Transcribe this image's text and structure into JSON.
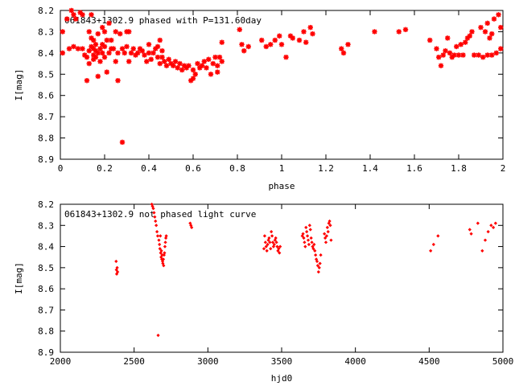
{
  "chart_data": [
    {
      "type": "scatter",
      "title": "061843+1302.9 phased with P=131.60day",
      "xlabel": "phase",
      "ylabel": "I[mag]",
      "xlim": [
        0,
        2
      ],
      "ylim": [
        8.2,
        8.9
      ],
      "y_inverted": true,
      "xticks": [
        "0",
        "0.2",
        "0.4",
        "0.6",
        "0.8",
        "1",
        "1.2",
        "1.4",
        "1.6",
        "1.8",
        "2"
      ],
      "yticks": [
        "8.2",
        "8.3",
        "8.4",
        "8.5",
        "8.6",
        "8.7",
        "8.8",
        "8.9"
      ],
      "marker": "star",
      "color": "#ff0000",
      "points": [
        [
          0.01,
          8.3
        ],
        [
          0.01,
          8.4
        ],
        [
          0.03,
          8.24
        ],
        [
          0.04,
          8.38
        ],
        [
          0.05,
          8.2
        ],
        [
          0.06,
          8.22
        ],
        [
          0.06,
          8.37
        ],
        [
          0.07,
          8.24
        ],
        [
          0.08,
          8.38
        ],
        [
          0.09,
          8.21
        ],
        [
          0.1,
          8.22
        ],
        [
          0.1,
          8.38
        ],
        [
          0.11,
          8.41
        ],
        [
          0.12,
          8.42
        ],
        [
          0.12,
          8.53
        ],
        [
          0.13,
          8.39
        ],
        [
          0.13,
          8.3
        ],
        [
          0.13,
          8.45
        ],
        [
          0.14,
          8.22
        ],
        [
          0.14,
          8.33
        ],
        [
          0.14,
          8.37
        ],
        [
          0.15,
          8.34
        ],
        [
          0.15,
          8.38
        ],
        [
          0.15,
          8.41
        ],
        [
          0.15,
          8.43
        ],
        [
          0.16,
          8.36
        ],
        [
          0.16,
          8.39
        ],
        [
          0.16,
          8.42
        ],
        [
          0.17,
          8.4
        ],
        [
          0.17,
          8.51
        ],
        [
          0.17,
          8.31
        ],
        [
          0.18,
          8.38
        ],
        [
          0.18,
          8.44
        ],
        [
          0.19,
          8.36
        ],
        [
          0.19,
          8.4
        ],
        [
          0.19,
          8.28
        ],
        [
          0.2,
          8.42
        ],
        [
          0.2,
          8.3
        ],
        [
          0.2,
          8.37
        ],
        [
          0.21,
          8.34
        ],
        [
          0.21,
          8.49
        ],
        [
          0.22,
          8.26
        ],
        [
          0.22,
          8.4
        ],
        [
          0.23,
          8.34
        ],
        [
          0.23,
          8.38
        ],
        [
          0.24,
          8.38
        ],
        [
          0.25,
          8.3
        ],
        [
          0.25,
          8.44
        ],
        [
          0.26,
          8.53
        ],
        [
          0.26,
          8.4
        ],
        [
          0.27,
          8.31
        ],
        [
          0.28,
          8.38
        ],
        [
          0.28,
          8.82
        ],
        [
          0.29,
          8.4
        ],
        [
          0.3,
          8.3
        ],
        [
          0.3,
          8.37
        ],
        [
          0.31,
          8.44
        ],
        [
          0.31,
          8.3
        ],
        [
          0.32,
          8.4
        ],
        [
          0.33,
          8.38
        ],
        [
          0.34,
          8.41
        ],
        [
          0.35,
          8.4
        ],
        [
          0.36,
          8.38
        ],
        [
          0.37,
          8.39
        ],
        [
          0.38,
          8.41
        ],
        [
          0.39,
          8.44
        ],
        [
          0.4,
          8.4
        ],
        [
          0.4,
          8.36
        ],
        [
          0.41,
          8.43
        ],
        [
          0.42,
          8.4
        ],
        [
          0.43,
          8.38
        ],
        [
          0.44,
          8.37
        ],
        [
          0.44,
          8.42
        ],
        [
          0.45,
          8.45
        ],
        [
          0.45,
          8.34
        ],
        [
          0.46,
          8.42
        ],
        [
          0.46,
          8.39
        ],
        [
          0.47,
          8.44
        ],
        [
          0.48,
          8.46
        ],
        [
          0.49,
          8.43
        ],
        [
          0.5,
          8.45
        ],
        [
          0.51,
          8.46
        ],
        [
          0.52,
          8.44
        ],
        [
          0.53,
          8.47
        ],
        [
          0.54,
          8.45
        ],
        [
          0.55,
          8.48
        ],
        [
          0.56,
          8.46
        ],
        [
          0.57,
          8.47
        ],
        [
          0.58,
          8.46
        ],
        [
          0.59,
          8.53
        ],
        [
          0.6,
          8.52
        ],
        [
          0.6,
          8.48
        ],
        [
          0.61,
          8.5
        ],
        [
          0.62,
          8.45
        ],
        [
          0.63,
          8.47
        ],
        [
          0.64,
          8.46
        ],
        [
          0.65,
          8.44
        ],
        [
          0.66,
          8.47
        ],
        [
          0.67,
          8.43
        ],
        [
          0.68,
          8.5
        ],
        [
          0.69,
          8.45
        ],
        [
          0.7,
          8.42
        ],
        [
          0.71,
          8.49
        ],
        [
          0.71,
          8.46
        ],
        [
          0.72,
          8.42
        ],
        [
          0.73,
          8.35
        ],
        [
          0.73,
          8.44
        ],
        [
          0.81,
          8.29
        ],
        [
          0.82,
          8.36
        ],
        [
          0.83,
          8.39
        ],
        [
          0.85,
          8.37
        ],
        [
          0.91,
          8.34
        ],
        [
          0.93,
          8.37
        ],
        [
          0.95,
          8.36
        ],
        [
          0.97,
          8.34
        ],
        [
          0.99,
          8.32
        ],
        [
          1.0,
          8.36
        ],
        [
          1.02,
          8.42
        ],
        [
          1.04,
          8.32
        ],
        [
          1.05,
          8.33
        ],
        [
          1.08,
          8.34
        ],
        [
          1.1,
          8.3
        ],
        [
          1.11,
          8.35
        ],
        [
          1.13,
          8.28
        ],
        [
          1.14,
          8.31
        ],
        [
          1.27,
          8.38
        ],
        [
          1.28,
          8.4
        ],
        [
          1.3,
          8.36
        ],
        [
          1.42,
          8.3
        ],
        [
          1.53,
          8.3
        ],
        [
          1.56,
          8.29
        ],
        [
          1.67,
          8.34
        ],
        [
          1.7,
          8.38
        ],
        [
          1.71,
          8.42
        ],
        [
          1.72,
          8.46
        ],
        [
          1.73,
          8.41
        ],
        [
          1.74,
          8.39
        ],
        [
          1.75,
          8.33
        ],
        [
          1.76,
          8.4
        ],
        [
          1.77,
          8.42
        ],
        [
          1.78,
          8.41
        ],
        [
          1.79,
          8.37
        ],
        [
          1.8,
          8.41
        ],
        [
          1.81,
          8.36
        ],
        [
          1.82,
          8.41
        ],
        [
          1.83,
          8.35
        ],
        [
          1.84,
          8.33
        ],
        [
          1.85,
          8.32
        ],
        [
          1.86,
          8.3
        ],
        [
          1.87,
          8.41
        ],
        [
          1.89,
          8.41
        ],
        [
          1.9,
          8.28
        ],
        [
          1.91,
          8.42
        ],
        [
          1.92,
          8.3
        ],
        [
          1.93,
          8.26
        ],
        [
          1.93,
          8.41
        ],
        [
          1.94,
          8.33
        ],
        [
          1.95,
          8.31
        ],
        [
          1.95,
          8.41
        ],
        [
          1.96,
          8.24
        ],
        [
          1.97,
          8.4
        ],
        [
          1.98,
          8.22
        ],
        [
          1.99,
          8.38
        ],
        [
          1.99,
          8.28
        ]
      ]
    },
    {
      "type": "scatter",
      "title": "061843+1302.9 not phased light curve",
      "xlabel": "hjd0",
      "ylabel": "I[mag]",
      "xlim": [
        2000,
        5000
      ],
      "ylim": [
        8.2,
        8.9
      ],
      "y_inverted": true,
      "xticks": [
        "2000",
        "2500",
        "3000",
        "3500",
        "4000",
        "4500",
        "5000"
      ],
      "yticks": [
        "8.2",
        "8.3",
        "8.4",
        "8.5",
        "8.6",
        "8.7",
        "8.8",
        "8.9"
      ],
      "marker": "dot",
      "color": "#ff0000",
      "points": [
        [
          2378,
          8.47
        ],
        [
          2380,
          8.51
        ],
        [
          2382,
          8.53
        ],
        [
          2385,
          8.5
        ],
        [
          2388,
          8.52
        ],
        [
          2620,
          8.2
        ],
        [
          2625,
          8.21
        ],
        [
          2630,
          8.22
        ],
        [
          2635,
          8.24
        ],
        [
          2640,
          8.26
        ],
        [
          2645,
          8.28
        ],
        [
          2650,
          8.3
        ],
        [
          2655,
          8.33
        ],
        [
          2660,
          8.35
        ],
        [
          2663,
          8.82
        ],
        [
          2668,
          8.37
        ],
        [
          2672,
          8.39
        ],
        [
          2675,
          8.41
        ],
        [
          2678,
          8.35
        ],
        [
          2680,
          8.43
        ],
        [
          2683,
          8.45
        ],
        [
          2685,
          8.42
        ],
        [
          2688,
          8.46
        ],
        [
          2690,
          8.44
        ],
        [
          2693,
          8.47
        ],
        [
          2695,
          8.48
        ],
        [
          2698,
          8.46
        ],
        [
          2700,
          8.49
        ],
        [
          2703,
          8.44
        ],
        [
          2706,
          8.43
        ],
        [
          2709,
          8.4
        ],
        [
          2712,
          8.38
        ],
        [
          2715,
          8.36
        ],
        [
          2718,
          8.35
        ],
        [
          2880,
          8.29
        ],
        [
          2885,
          8.3
        ],
        [
          2890,
          8.31
        ],
        [
          3380,
          8.41
        ],
        [
          3385,
          8.35
        ],
        [
          3390,
          8.38
        ],
        [
          3395,
          8.4
        ],
        [
          3400,
          8.42
        ],
        [
          3405,
          8.39
        ],
        [
          3410,
          8.37
        ],
        [
          3415,
          8.36
        ],
        [
          3420,
          8.38
        ],
        [
          3425,
          8.41
        ],
        [
          3430,
          8.33
        ],
        [
          3435,
          8.35
        ],
        [
          3440,
          8.38
        ],
        [
          3445,
          8.4
        ],
        [
          3450,
          8.39
        ],
        [
          3455,
          8.37
        ],
        [
          3460,
          8.36
        ],
        [
          3465,
          8.38
        ],
        [
          3470,
          8.4
        ],
        [
          3475,
          8.42
        ],
        [
          3480,
          8.41
        ],
        [
          3485,
          8.43
        ],
        [
          3490,
          8.4
        ],
        [
          3640,
          8.35
        ],
        [
          3645,
          8.34
        ],
        [
          3650,
          8.36
        ],
        [
          3655,
          8.38
        ],
        [
          3660,
          8.4
        ],
        [
          3665,
          8.31
        ],
        [
          3670,
          8.33
        ],
        [
          3675,
          8.35
        ],
        [
          3680,
          8.37
        ],
        [
          3685,
          8.39
        ],
        [
          3690,
          8.3
        ],
        [
          3695,
          8.32
        ],
        [
          3700,
          8.36
        ],
        [
          3705,
          8.38
        ],
        [
          3710,
          8.4
        ],
        [
          3715,
          8.41
        ],
        [
          3720,
          8.39
        ],
        [
          3725,
          8.42
        ],
        [
          3730,
          8.44
        ],
        [
          3735,
          8.46
        ],
        [
          3740,
          8.47
        ],
        [
          3745,
          8.49
        ],
        [
          3750,
          8.52
        ],
        [
          3755,
          8.5
        ],
        [
          3760,
          8.48
        ],
        [
          3765,
          8.44
        ],
        [
          3790,
          8.34
        ],
        [
          3795,
          8.36
        ],
        [
          3800,
          8.38
        ],
        [
          3805,
          8.35
        ],
        [
          3810,
          8.31
        ],
        [
          3815,
          8.33
        ],
        [
          3820,
          8.29
        ],
        [
          3825,
          8.28
        ],
        [
          3830,
          8.3
        ],
        [
          3835,
          8.37
        ],
        [
          4510,
          8.42
        ],
        [
          4530,
          8.39
        ],
        [
          4560,
          8.35
        ],
        [
          4775,
          8.32
        ],
        [
          4785,
          8.34
        ],
        [
          4830,
          8.29
        ],
        [
          4860,
          8.42
        ],
        [
          4880,
          8.37
        ],
        [
          4900,
          8.33
        ],
        [
          4920,
          8.3
        ],
        [
          4935,
          8.31
        ],
        [
          4950,
          8.29
        ]
      ]
    }
  ]
}
